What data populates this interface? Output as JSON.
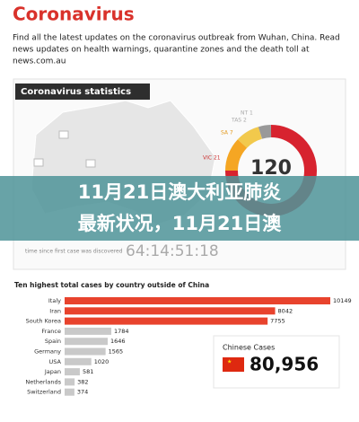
{
  "header": {
    "title": "Coronavirus",
    "lines": [
      "Find all the latest updates on the coronavirus outbreak from Wuhan, China. Read",
      "news updates on health warnings, quarantine zones and the death toll at",
      "news.com.au"
    ]
  },
  "stats_panel": {
    "title": "Coronavirus statistics",
    "state_labels": [
      "NT 1",
      "TAS 2",
      "SA 7",
      "VIC 21"
    ],
    "total": "120",
    "timer": "64:14:51:18",
    "timer_caption": "time since first case was discovered"
  },
  "banner": {
    "lines": [
      "11月21日澳大利亚肺炎",
      "最新状况，11月21日澳"
    ]
  },
  "bar_chart": {
    "type": "bar",
    "title": "Ten highest total cases by country outside of China",
    "categories": [
      "Italy",
      "Iran",
      "South Korea",
      "France",
      "Spain",
      "Germany",
      "USA",
      "Japan",
      "Netherlands",
      "Switzerland"
    ],
    "values": [
      10149,
      8042,
      7755,
      1784,
      1646,
      1565,
      1020,
      581,
      382,
      374
    ],
    "colors": [
      "#e8432d",
      "#e8432d",
      "#e8432d",
      "#c9c9c9",
      "#c9c9c9",
      "#c9c9c9",
      "#c9c9c9",
      "#c9c9c9",
      "#c9c9c9",
      "#c9c9c9"
    ]
  },
  "china_box": {
    "title": "Chinese Cases",
    "count": "80,956"
  }
}
